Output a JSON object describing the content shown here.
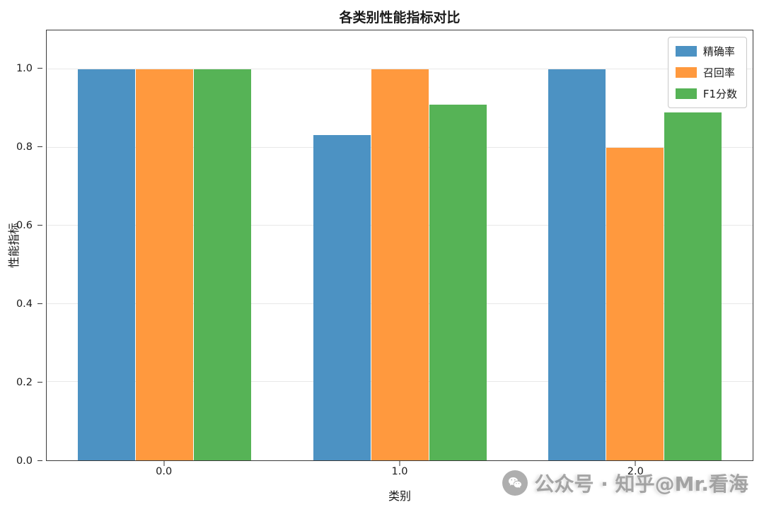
{
  "chart_data": {
    "type": "bar",
    "title": "各类别性能指标对比",
    "xlabel": "类别",
    "ylabel": "性能指标",
    "categories": [
      "0.0",
      "1.0",
      "2.0"
    ],
    "series": [
      {
        "name": "精确率",
        "color": "#4C92C3",
        "values": [
          1.0,
          0.833,
          1.0
        ]
      },
      {
        "name": "召回率",
        "color": "#FF993E",
        "values": [
          1.0,
          1.0,
          0.8
        ]
      },
      {
        "name": "F1分数",
        "color": "#56B356",
        "values": [
          1.0,
          0.91,
          0.89
        ]
      }
    ],
    "ylim": [
      0,
      1.1
    ],
    "yticks": [
      0.0,
      0.2,
      0.4,
      0.6,
      0.8,
      1.0
    ],
    "grid": true,
    "legend_position": "upper right"
  },
  "watermark": {
    "icon": "wechat-icon",
    "text": "公众号 · 知乎@Mr.看海"
  }
}
